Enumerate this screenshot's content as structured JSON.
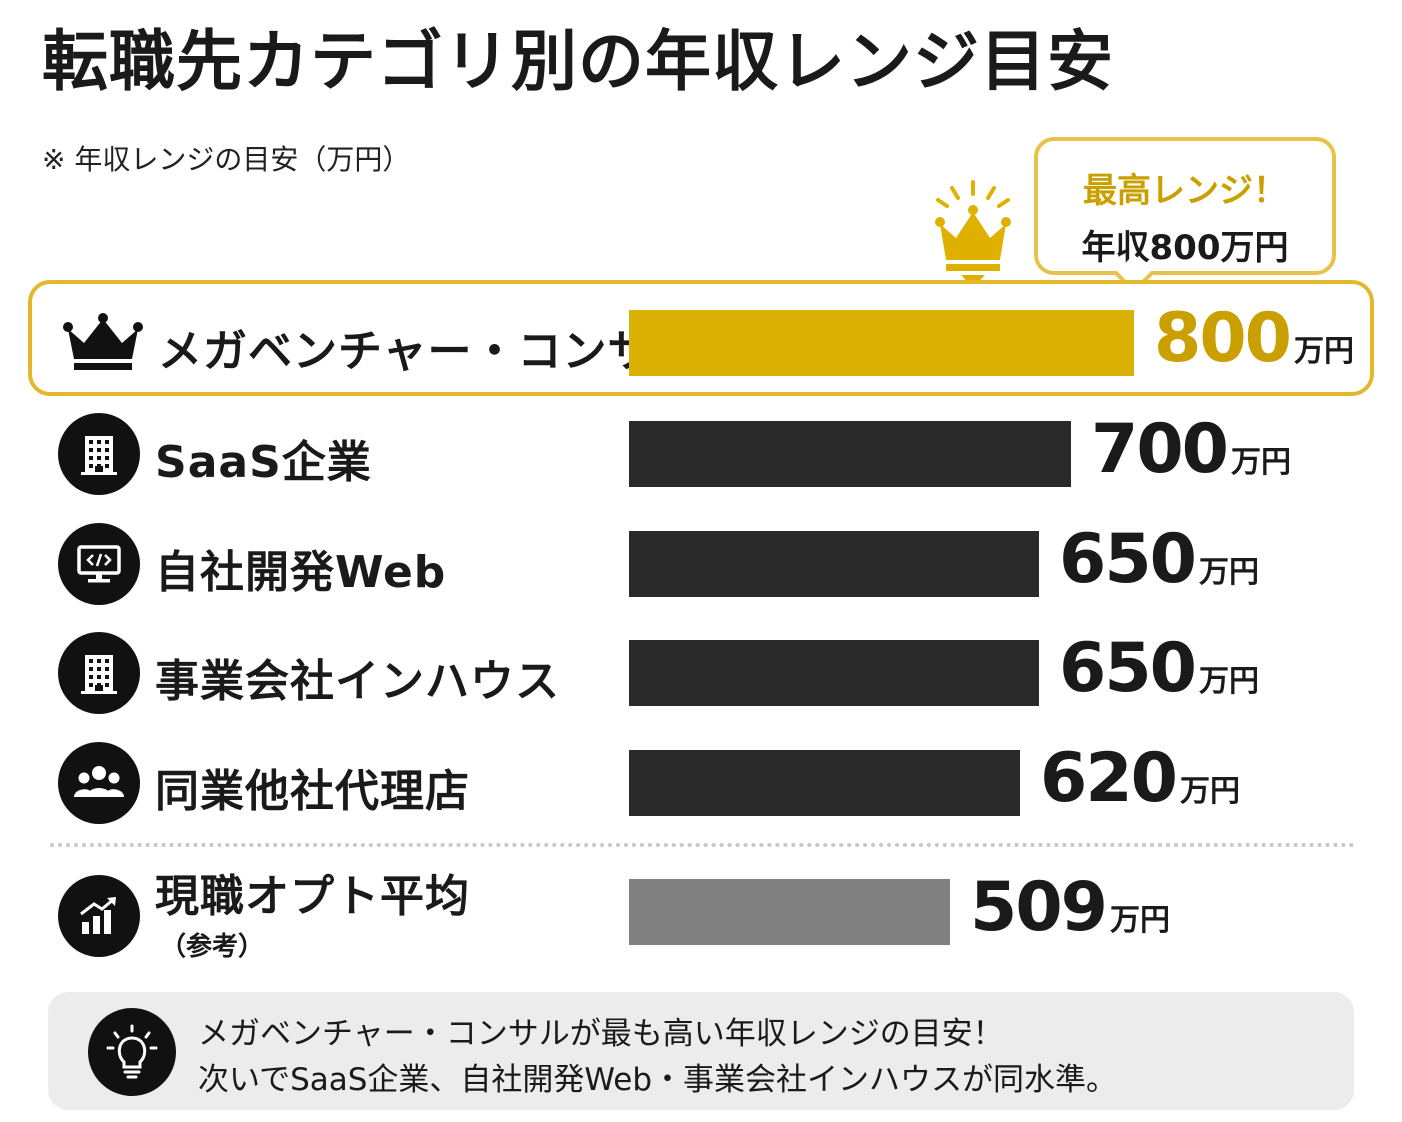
{
  "title": "転職先カテゴリ別の年収レンジ目安",
  "subtitle": "※ 年収レンジの目安（万円）",
  "callout": {
    "line1": "最高レンジ！",
    "line2": "年収800万円"
  },
  "unit": "万円",
  "colors": {
    "highlight": "#dcb106",
    "bar": "#2a2a2a",
    "reference": "#808080",
    "accent_text": "#c9a000"
  },
  "chart_data": {
    "type": "bar",
    "orientation": "horizontal",
    "categories": [
      "メガベンチャー・コンサル",
      "SaaS企業",
      "自社開発Web",
      "事業会社インハウス",
      "同業他社代理店",
      "現職オプト平均"
    ],
    "category_notes": [
      "",
      "",
      "",
      "",
      "",
      "（参考）"
    ],
    "values": [
      800,
      700,
      650,
      650,
      620,
      509
    ],
    "value_labels": [
      "800",
      "700",
      "650",
      "650",
      "620",
      "509"
    ],
    "highlighted": [
      true,
      false,
      false,
      false,
      false,
      false
    ],
    "reference": [
      false,
      false,
      false,
      false,
      false,
      true
    ],
    "icons": [
      "crown-icon",
      "building-icon",
      "monitor-code-icon",
      "building-icon",
      "people-icon",
      "chart-growth-icon"
    ],
    "grid": false,
    "legend": "none"
  },
  "note": {
    "icon": "lightbulb-icon",
    "line1": "メガベンチャー・コンサルが最も高い年収レンジの目安！",
    "line2": "次いでSaaS企業、自社開発Web・事業会社インハウスが同水準。"
  }
}
